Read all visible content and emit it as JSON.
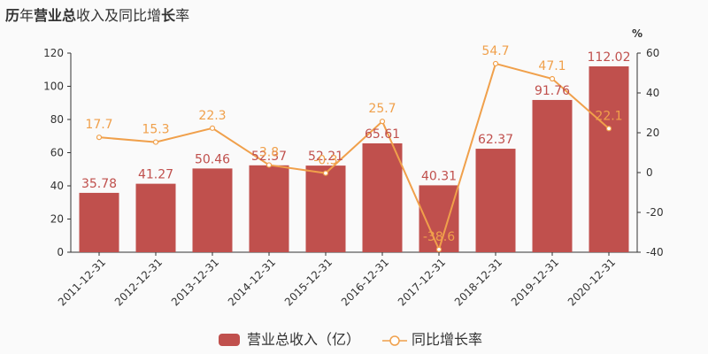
{
  "title": {
    "parts": [
      {
        "text": "历",
        "bold": true
      },
      {
        "text": "年",
        "bold": false
      },
      {
        "text": "营业总",
        "bold": true
      },
      {
        "text": "收入及同比增",
        "bold": false
      },
      {
        "text": "长",
        "bold": true
      },
      {
        "text": "率",
        "bold": false
      }
    ]
  },
  "chart_data": {
    "type": "bar",
    "categories": [
      "2011-12-31",
      "2012-12-31",
      "2013-12-31",
      "2014-12-31",
      "2015-12-31",
      "2016-12-31",
      "2017-12-31",
      "2018-12-31",
      "2019-12-31",
      "2020-12-31"
    ],
    "series": [
      {
        "name": "营业总收入（亿）",
        "type": "bar",
        "axis": "left",
        "values": [
          35.78,
          41.27,
          50.46,
          52.37,
          52.21,
          65.61,
          40.31,
          62.37,
          91.76,
          112.02
        ],
        "labels": [
          "35.78",
          "41.27",
          "50.46",
          "52.37",
          "52.21",
          "65.61",
          "40.31",
          "62.37",
          "91.76",
          "112.02"
        ]
      },
      {
        "name": "同比增长率",
        "type": "line",
        "axis": "right",
        "values": [
          17.7,
          15.3,
          22.3,
          3.8,
          -0.3,
          25.7,
          -38.6,
          54.7,
          47.1,
          22.1
        ],
        "labels": [
          "17.7",
          "15.3",
          "22.3",
          "3.8",
          "-0.3",
          "25.7",
          "-38.6",
          "54.7",
          "47.1",
          "22.1"
        ]
      }
    ],
    "y_left": {
      "ylim": [
        0,
        120
      ],
      "ticks": [
        0,
        20,
        40,
        60,
        80,
        100,
        120
      ]
    },
    "y_right": {
      "ylim": [
        -40,
        60
      ],
      "ticks": [
        -40,
        -20,
        0,
        20,
        40,
        60
      ],
      "unit": "%"
    },
    "legend": {
      "placement": "bottom-center"
    },
    "grid": false,
    "colors": {
      "bar": "#c0504d",
      "line": "#f0a04b",
      "point_fill": "#ffffff"
    }
  }
}
